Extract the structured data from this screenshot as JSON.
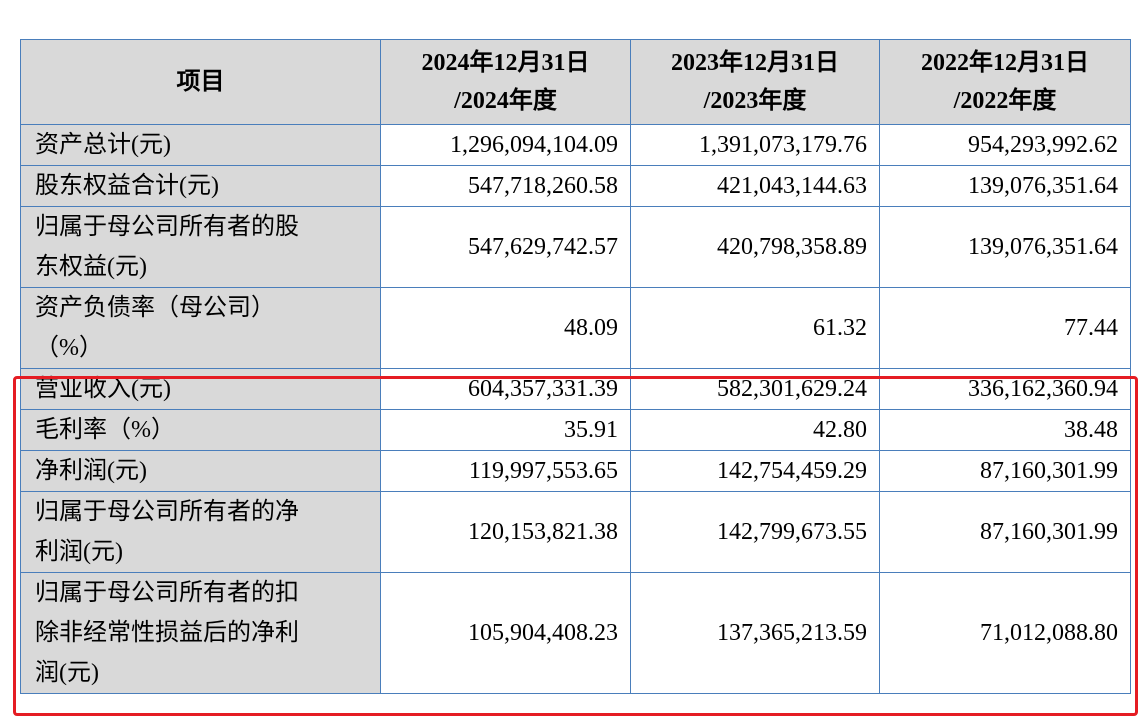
{
  "header": {
    "item": "项目",
    "col1": [
      "2024年12月31日",
      "/2024年度"
    ],
    "col2": [
      "2023年12月31日",
      "/2023年度"
    ],
    "col3": [
      "2022年12月31日",
      "/2022年度"
    ]
  },
  "rows": [
    {
      "label": [
        "资产总计(元)"
      ],
      "v2024": "1,296,094,104.09",
      "v2023": "1,391,073,179.76",
      "v2022": "954,293,992.62"
    },
    {
      "label": [
        "股东权益合计(元)"
      ],
      "v2024": "547,718,260.58",
      "v2023": "421,043,144.63",
      "v2022": "139,076,351.64"
    },
    {
      "label": [
        "归属于母公司所有者的股",
        "东权益(元)"
      ],
      "v2024": "547,629,742.57",
      "v2023": "420,798,358.89",
      "v2022": "139,076,351.64"
    },
    {
      "label": [
        "资产负债率（母公司）",
        "（%）"
      ],
      "v2024": "48.09",
      "v2023": "61.32",
      "v2022": "77.44"
    },
    {
      "label": [
        "营业收入(元)"
      ],
      "v2024": "604,357,331.39",
      "v2023": "582,301,629.24",
      "v2022": "336,162,360.94"
    },
    {
      "label": [
        "毛利率（%）"
      ],
      "v2024": "35.91",
      "v2023": "42.80",
      "v2022": "38.48"
    },
    {
      "label": [
        "净利润(元)"
      ],
      "v2024": "119,997,553.65",
      "v2023": "142,754,459.29",
      "v2022": "87,160,301.99"
    },
    {
      "label": [
        "归属于母公司所有者的净",
        "利润(元)"
      ],
      "v2024": "120,153,821.38",
      "v2023": "142,799,673.55",
      "v2022": "87,160,301.99"
    },
    {
      "label": [
        "归属于母公司所有者的扣",
        "除非经常性损益后的净利",
        "润(元)"
      ],
      "v2024": "105,904,408.23",
      "v2023": "137,365,213.59",
      "v2022": "71,012,088.80"
    }
  ],
  "highlight": {
    "color": "#e51c23"
  }
}
